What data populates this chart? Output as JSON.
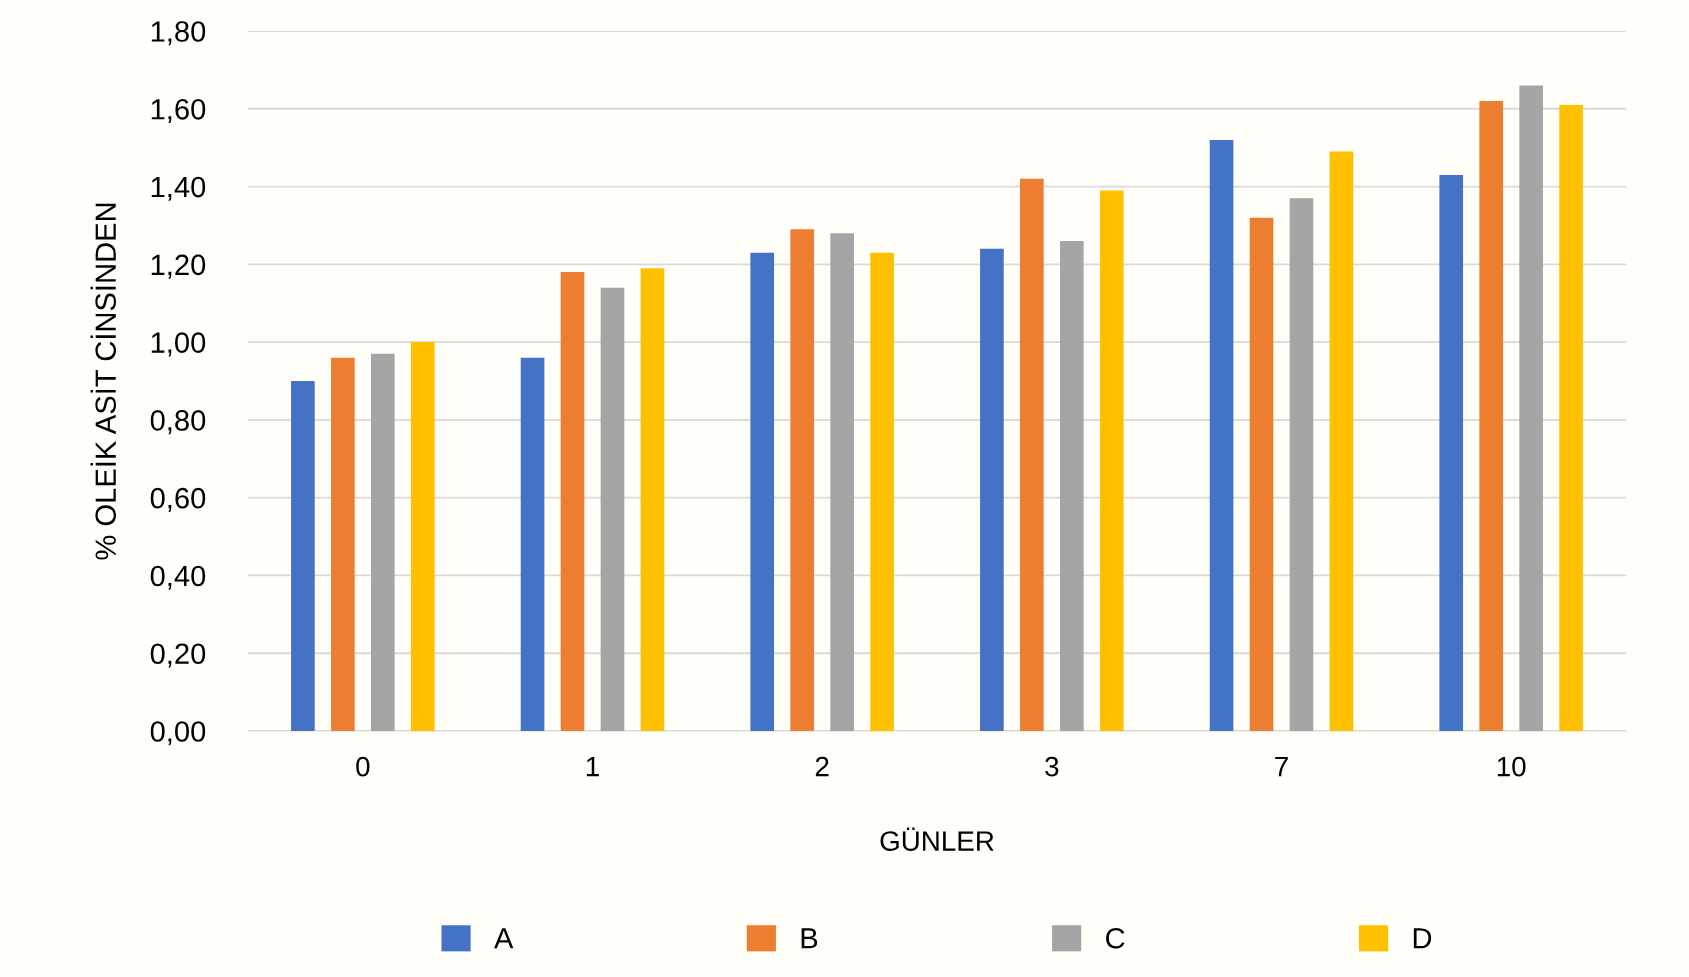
{
  "chart_data": {
    "type": "bar",
    "xlabel": "GÜNLER",
    "ylabel": "% OLEİK ASİT CİNSİNDEN",
    "categories": [
      "0",
      "1",
      "2",
      "3",
      "7",
      "10"
    ],
    "series": [
      {
        "name": "A",
        "color": "#4472c4",
        "values": [
          0.9,
          0.96,
          1.23,
          1.24,
          1.52,
          1.43
        ]
      },
      {
        "name": "B",
        "color": "#ed7d31",
        "values": [
          0.96,
          1.18,
          1.29,
          1.42,
          1.32,
          1.62
        ]
      },
      {
        "name": "C",
        "color": "#a5a5a5",
        "values": [
          0.97,
          1.14,
          1.28,
          1.26,
          1.37,
          1.66
        ]
      },
      {
        "name": "D",
        "color": "#ffc000",
        "values": [
          1.0,
          1.19,
          1.23,
          1.39,
          1.49,
          1.61
        ]
      }
    ],
    "ylim": [
      0,
      1.8
    ],
    "yticks": [
      {
        "value": 0,
        "label": "0,00"
      },
      {
        "value": 0.2,
        "label": "0,20"
      },
      {
        "value": 0.4,
        "label": "0,40"
      },
      {
        "value": 0.6,
        "label": "0,60"
      },
      {
        "value": 0.8,
        "label": "0,80"
      },
      {
        "value": 1.0,
        "label": "1,00"
      },
      {
        "value": 1.2,
        "label": "1,20"
      },
      {
        "value": 1.4,
        "label": "1,40"
      },
      {
        "value": 1.6,
        "label": "1,60"
      },
      {
        "value": 1.8,
        "label": "1,80"
      }
    ],
    "grid": "y",
    "legend": "bottom"
  }
}
